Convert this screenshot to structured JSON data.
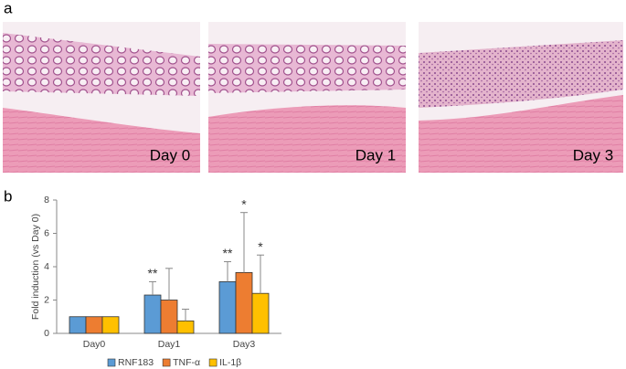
{
  "panels": [
    "a",
    "b"
  ],
  "images": [
    {
      "label": "Day 0"
    },
    {
      "label": "Day 1"
    },
    {
      "label": "Day 3"
    }
  ],
  "chart_data": {
    "type": "bar",
    "ylabel": "Fold induction (vs Day 0)",
    "categories": [
      "Day0",
      "Day1",
      "Day3"
    ],
    "series": [
      {
        "name": "RNF183",
        "color": "#5b9bd5",
        "values": [
          1,
          2.3,
          3.1
        ],
        "errors": [
          0,
          0.8,
          1.2
        ],
        "significance": [
          null,
          "**",
          "**"
        ]
      },
      {
        "name": "TNF-α",
        "color": "#ed7d31",
        "values": [
          1,
          2.0,
          3.65
        ],
        "errors": [
          0,
          1.9,
          3.6
        ],
        "significance": [
          null,
          null,
          "*"
        ]
      },
      {
        "name": "IL-1β",
        "color": "#ffc000",
        "values": [
          1,
          0.75,
          2.4
        ],
        "errors": [
          0,
          0.7,
          2.3
        ],
        "significance": [
          null,
          null,
          "*"
        ]
      }
    ],
    "ylim": [
      0,
      8
    ],
    "yticks": [
      0,
      2,
      4,
      6,
      8
    ],
    "grid": false,
    "legend": "bottom"
  }
}
